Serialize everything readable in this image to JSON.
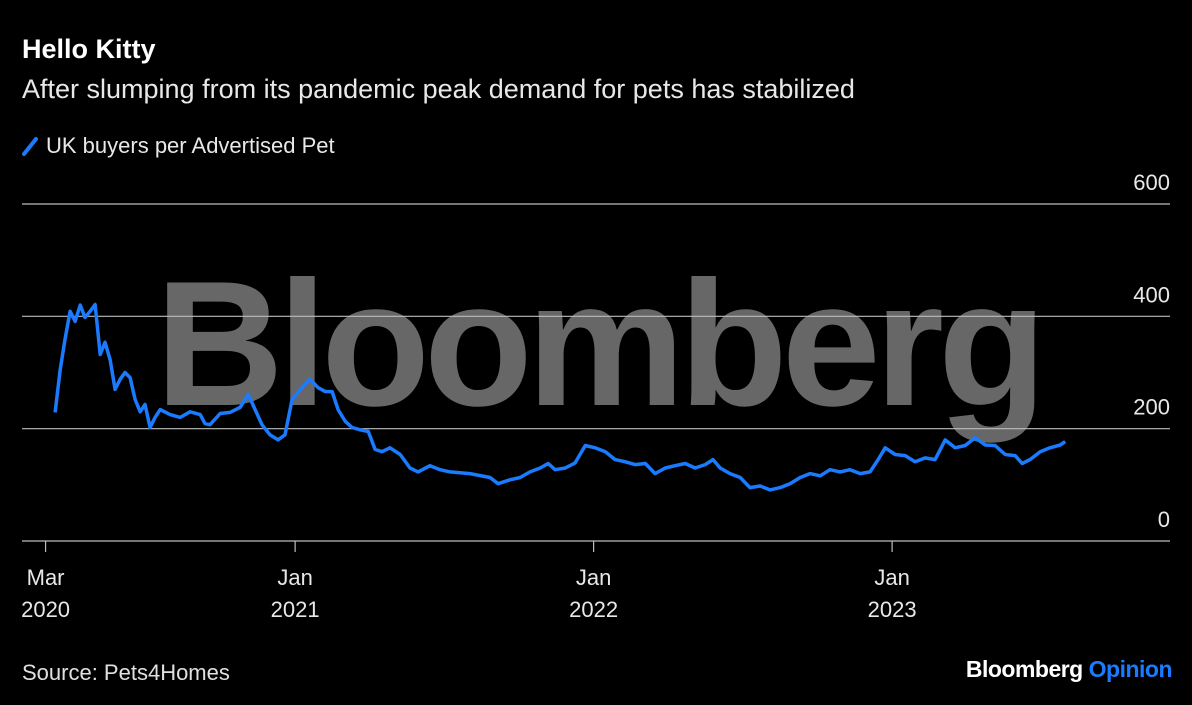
{
  "chart_data": {
    "type": "line",
    "title": "Hello Kitty",
    "subtitle": "After slumping from its pandemic peak demand for pets has stabilized",
    "watermark": "Bloomberg",
    "source": "Source: Pets4Homes",
    "brand": {
      "name": "Bloomberg",
      "label": "Opinion",
      "label_color": "#1a7bff"
    },
    "x": [
      2020.196,
      2020.213,
      2020.229,
      2020.246,
      2020.263,
      2020.28,
      2020.296,
      2020.313,
      2020.33,
      2020.347,
      2020.363,
      2020.38,
      2020.397,
      2020.414,
      2020.43,
      2020.447,
      2020.464,
      2020.481,
      2020.497,
      2020.514,
      2020.531,
      2020.548,
      2020.581,
      2020.615,
      2020.648,
      2020.682,
      2020.698,
      2020.715,
      2020.749,
      2020.782,
      2020.816,
      2020.843,
      2020.866,
      2020.889,
      2020.916,
      2020.943,
      2020.966,
      2020.99,
      2021.017,
      2021.05,
      2021.077,
      2021.101,
      2021.124,
      2021.144,
      2021.168,
      2021.191,
      2021.218,
      2021.245,
      2021.268,
      2021.291,
      2021.318,
      2021.352,
      2021.385,
      2021.412,
      2021.452,
      2021.486,
      2021.519,
      2021.586,
      2021.653,
      2021.68,
      2021.72,
      2021.754,
      2021.787,
      2021.821,
      2021.848,
      2021.871,
      2021.905,
      2021.938,
      2021.972,
      2022.005,
      2022.039,
      2022.072,
      2022.106,
      2022.139,
      2022.173,
      2022.206,
      2022.24,
      2022.273,
      2022.307,
      2022.34,
      2022.374,
      2022.4,
      2022.424,
      2022.457,
      2022.491,
      2022.524,
      2022.558,
      2022.591,
      2022.625,
      2022.658,
      2022.692,
      2022.725,
      2022.759,
      2022.792,
      2022.826,
      2022.859,
      2022.893,
      2022.926,
      2022.953,
      2022.977,
      2023.01,
      2023.044,
      2023.077,
      2023.111,
      2023.144,
      2023.178,
      2023.211,
      2023.245,
      2023.278,
      2023.312,
      2023.345,
      2023.379,
      2023.412,
      2023.436,
      2023.462,
      2023.496,
      2023.529,
      2023.563,
      2023.58
    ],
    "series": [
      {
        "name": "UK buyers per Advertised Pet",
        "color": "#1a7bff",
        "values": [
          229,
          305,
          359,
          409,
          391,
          420,
          398,
          409,
          421,
          332,
          354,
          323,
          270,
          288,
          300,
          291,
          252,
          230,
          243,
          202,
          220,
          234,
          225,
          220,
          230,
          225,
          209,
          207,
          227,
          229,
          238,
          261,
          234,
          207,
          189,
          180,
          189,
          252,
          270,
          288,
          273,
          266,
          266,
          234,
          213,
          202,
          198,
          195,
          163,
          159,
          166,
          154,
          130,
          123,
          134,
          127,
          123,
          120,
          113,
          102,
          109,
          113,
          123,
          130,
          138,
          127,
          130,
          139,
          170,
          166,
          159,
          145,
          141,
          136,
          138,
          120,
          130,
          134,
          138,
          130,
          136,
          145,
          130,
          120,
          113,
          95,
          98,
          91,
          95,
          102,
          113,
          120,
          116,
          127,
          123,
          127,
          120,
          123,
          145,
          166,
          154,
          152,
          141,
          148,
          145,
          180,
          166,
          170,
          184,
          171,
          170,
          154,
          152,
          138,
          145,
          159,
          166,
          171,
          177
        ]
      }
    ],
    "xlim": [
      2020.085,
      2023.931
    ],
    "xticks": [
      {
        "value": 2020.164,
        "label": "Mar 2020"
      },
      {
        "value": 2021,
        "label": "Jan 2021"
      },
      {
        "value": 2022,
        "label": "Jan 2022"
      },
      {
        "value": 2023,
        "label": "Jan 2023"
      }
    ],
    "ylim": [
      0,
      600
    ],
    "yticks": [
      0,
      200,
      400,
      600
    ],
    "grid": true
  }
}
